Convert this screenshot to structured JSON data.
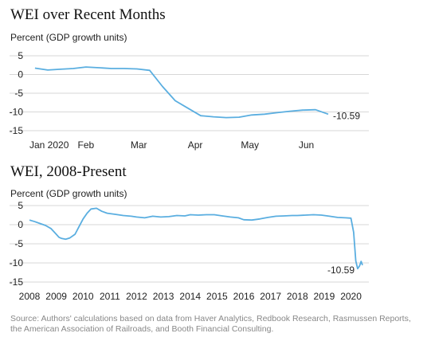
{
  "chart_data": [
    {
      "type": "line",
      "title": "WEI over Recent Months",
      "ylabel": "Percent (GDP growth units)",
      "xlabel": "",
      "ylim": [
        -15,
        5
      ],
      "yticks": [
        5,
        0,
        -5,
        -10,
        -15
      ],
      "grid": "horizontal",
      "color": "#5aaee0",
      "x_tick_labels": [
        "Jan 2020",
        "Feb",
        "Mar",
        "Apr",
        "May",
        "Jun"
      ],
      "x_tick_dates": [
        "2020-01-01",
        "2020-02-01",
        "2020-03-01",
        "2020-04-01",
        "2020-05-01",
        "2020-06-01"
      ],
      "end_label": "-10.59",
      "series": [
        {
          "x": [
            "2020-01-04",
            "2020-01-11",
            "2020-01-18",
            "2020-01-25",
            "2020-02-01",
            "2020-02-08",
            "2020-02-15",
            "2020-02-22",
            "2020-02-29",
            "2020-03-07",
            "2020-03-14",
            "2020-03-21",
            "2020-03-28",
            "2020-04-04",
            "2020-04-11",
            "2020-04-18",
            "2020-04-25",
            "2020-05-02",
            "2020-05-09",
            "2020-05-16",
            "2020-05-23",
            "2020-05-30",
            "2020-06-06",
            "2020-06-13"
          ],
          "values": [
            1.7,
            1.2,
            1.4,
            1.6,
            2.0,
            1.8,
            1.6,
            1.6,
            1.5,
            1.1,
            -3.2,
            -7.0,
            -9.0,
            -11.0,
            -11.3,
            -11.5,
            -11.4,
            -10.8,
            -10.6,
            -10.2,
            -9.8,
            -9.5,
            -9.4,
            -10.59
          ]
        }
      ]
    },
    {
      "type": "line",
      "title": "WEI, 2008-Present",
      "ylabel": "Percent (GDP growth units)",
      "xlabel": "",
      "ylim": [
        -15,
        5
      ],
      "yticks": [
        5,
        0,
        -5,
        -10,
        -15
      ],
      "grid": "horizontal",
      "color": "#5aaee0",
      "x_tick_labels": [
        "2008",
        "2009",
        "2010",
        "2011",
        "2012",
        "2013",
        "2014",
        "2015",
        "2016",
        "2017",
        "2018",
        "2019",
        "2020"
      ],
      "end_label": "-10.59",
      "series": [
        {
          "x": [
            2008.0,
            2008.2,
            2008.4,
            2008.6,
            2008.8,
            2009.0,
            2009.1,
            2009.2,
            2009.35,
            2009.5,
            2009.7,
            2009.85,
            2010.0,
            2010.15,
            2010.3,
            2010.5,
            2010.7,
            2010.9,
            2011.2,
            2011.5,
            2011.8,
            2012.0,
            2012.3,
            2012.6,
            2012.9,
            2013.2,
            2013.5,
            2013.8,
            2014.0,
            2014.3,
            2014.6,
            2014.9,
            2015.2,
            2015.5,
            2015.8,
            2016.0,
            2016.3,
            2016.6,
            2016.9,
            2017.2,
            2017.5,
            2017.8,
            2018.0,
            2018.3,
            2018.6,
            2018.9,
            2019.2,
            2019.5,
            2019.8,
            2020.0,
            2020.1,
            2020.18,
            2020.25,
            2020.32,
            2020.38,
            2020.43
          ],
          "values": [
            1.2,
            0.8,
            0.3,
            -0.2,
            -1.0,
            -2.5,
            -3.3,
            -3.6,
            -3.8,
            -3.5,
            -2.5,
            -0.5,
            1.5,
            3.0,
            4.1,
            4.3,
            3.5,
            3.0,
            2.7,
            2.4,
            2.2,
            2.0,
            1.8,
            2.2,
            2.0,
            2.1,
            2.4,
            2.3,
            2.6,
            2.5,
            2.6,
            2.6,
            2.3,
            2.0,
            1.8,
            1.3,
            1.2,
            1.5,
            1.9,
            2.2,
            2.3,
            2.4,
            2.4,
            2.5,
            2.6,
            2.5,
            2.2,
            1.9,
            1.8,
            1.7,
            -2.0,
            -9.5,
            -11.5,
            -10.8,
            -9.6,
            -10.59
          ]
        }
      ]
    }
  ],
  "source_text": "Source: Authors' calculations based on data from Haver Analytics, Redbook Research, Rasmussen Reports, the American Association of Railroads, and Booth Financial Consulting."
}
